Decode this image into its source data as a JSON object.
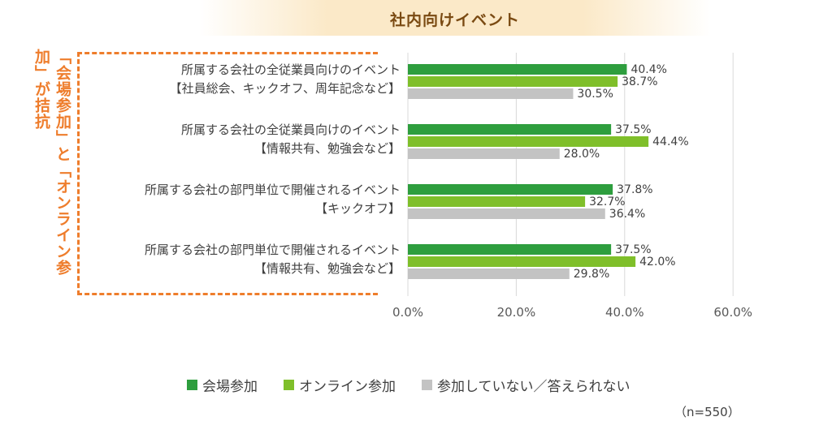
{
  "chart_data": {
    "type": "bar",
    "orientation": "horizontal",
    "title": "社内向けイベント",
    "side_label": "「会場参加」と「オンライン参加」が拮抗",
    "categories": [
      [
        "所属する会社の全従業員向けのイベント",
        "【社員総会、キックオフ、周年記念など】"
      ],
      [
        "所属する会社の全従業員向けのイベント",
        "【情報共有、勉強会など】"
      ],
      [
        "所属する会社の部門単位で開催されるイベント",
        "【キックオフ】"
      ],
      [
        "所属する会社の部門単位で開催されるイベント",
        "【情報共有、勉強会など】"
      ]
    ],
    "series": [
      {
        "name": "会場参加",
        "color": "#2e9e3e",
        "values": [
          40.4,
          37.5,
          37.8,
          37.5
        ]
      },
      {
        "name": "オンライン参加",
        "color": "#7fbf2a",
        "values": [
          38.7,
          44.4,
          32.7,
          42.0
        ]
      },
      {
        "name": "参加していない／答えられない",
        "color": "#c3c3c3",
        "values": [
          30.5,
          28.0,
          36.4,
          29.8
        ]
      }
    ],
    "xlim": [
      0,
      60
    ],
    "xticks": [
      "0.0%",
      "20.0%",
      "40.0%",
      "60.0%"
    ],
    "value_suffix": "%",
    "grid": true,
    "legend_position": "bottom",
    "note": "（n=550）"
  }
}
